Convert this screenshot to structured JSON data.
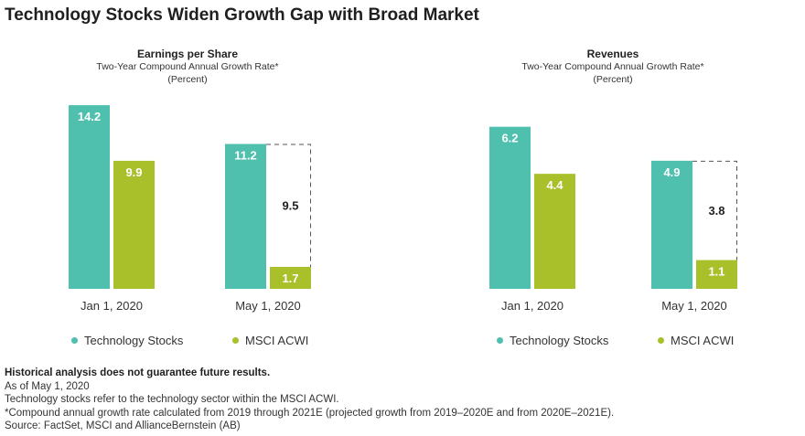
{
  "title": "Technology Stocks Widen Growth Gap with Broad Market",
  "colors": {
    "tech": "#4fbfae",
    "acwi": "#a9c02a"
  },
  "legend": {
    "tech": "Technology Stocks",
    "acwi": "MSCI ACWI"
  },
  "panels": [
    {
      "title": "Earnings per Share",
      "subtitle": "Two-Year Compound Annual Growth Rate*",
      "unit": "(Percent)"
    },
    {
      "title": "Revenues",
      "subtitle": "Two-Year Compound Annual Growth Rate*",
      "unit": "(Percent)"
    }
  ],
  "chart_data": [
    {
      "type": "bar",
      "title": "Earnings per Share",
      "subtitle": "Two-Year Compound Annual Growth Rate*",
      "ylabel": "(Percent)",
      "categories": [
        "Jan 1, 2020",
        "May 1, 2020"
      ],
      "series": [
        {
          "name": "Technology Stocks",
          "values": [
            14.2,
            11.2
          ],
          "labels": [
            "14.2",
            "11.2"
          ]
        },
        {
          "name": "MSCI ACWI",
          "values": [
            9.9,
            1.7
          ],
          "labels": [
            "9.9",
            "1.7"
          ]
        }
      ],
      "gap": {
        "category": "May 1, 2020",
        "value": 9.5,
        "label": "9.5"
      }
    },
    {
      "type": "bar",
      "title": "Revenues",
      "subtitle": "Two-Year Compound Annual Growth Rate*",
      "ylabel": "(Percent)",
      "categories": [
        "Jan 1, 2020",
        "May 1, 2020"
      ],
      "series": [
        {
          "name": "Technology Stocks",
          "values": [
            6.2,
            4.9
          ],
          "labels": [
            "6.2",
            "4.9"
          ]
        },
        {
          "name": "MSCI ACWI",
          "values": [
            4.4,
            1.1
          ],
          "labels": [
            "4.4",
            "1.1"
          ]
        }
      ],
      "gap": {
        "category": "May 1, 2020",
        "value": 3.8,
        "label": "3.8"
      }
    }
  ],
  "notes": {
    "disclaimer": "Historical analysis does not guarantee future results.",
    "as_of": "As of May 1, 2020",
    "definition": "Technology stocks refer to the technology sector within the MSCI ACWI.",
    "footnote": "*Compound annual growth rate calculated from 2019 through 2021E (projected growth from 2019–2020E and from 2020E–2021E).",
    "source": "Source: FactSet, MSCI and AllianceBernstein (AB)"
  }
}
